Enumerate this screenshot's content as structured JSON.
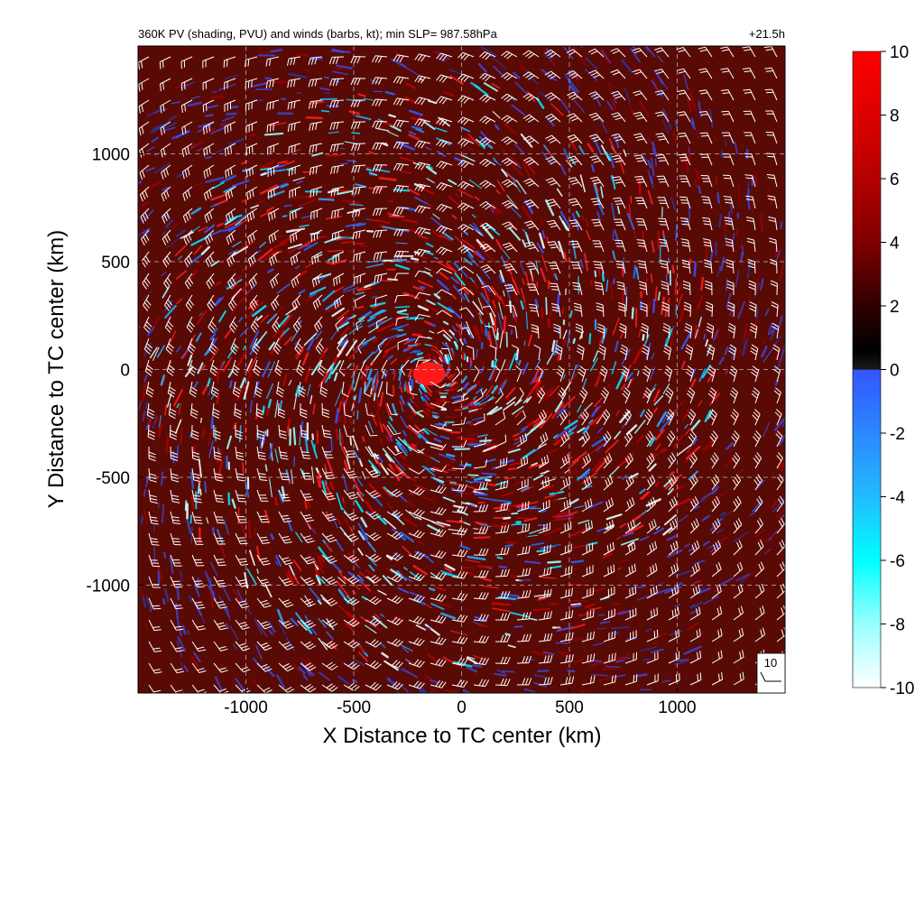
{
  "chart_data": {
    "type": "heatmap",
    "title": "360K PV (shading, PVU) and winds (barbs, kt); min SLP= 987.58hPa",
    "time_label": "+21.5h",
    "xlabel": "X Distance to TC center (km)",
    "ylabel": "Y Distance to TC center (km)",
    "xlim": [
      -1500,
      1500
    ],
    "ylim": [
      -1500,
      1500
    ],
    "x_ticks": [
      -1000,
      -500,
      0,
      500,
      1000
    ],
    "y_ticks": [
      -1000,
      -500,
      0,
      500,
      1000
    ],
    "x_tick_labels": [
      "-1000",
      "-500",
      "0",
      "500",
      "1000"
    ],
    "y_tick_labels": [
      "-1000",
      "-500",
      "0",
      "500",
      "1000"
    ],
    "grid": true,
    "colorbar": {
      "units": "PVU",
      "range": [
        -10,
        10
      ],
      "ticks": [
        10,
        8,
        6,
        4,
        2,
        0,
        -2,
        -4,
        -6,
        -8,
        -10
      ],
      "tick_labels": [
        "10",
        "8",
        "6",
        "4",
        "2",
        "0",
        "-2",
        "-4",
        "-6",
        "-8",
        "-10"
      ],
      "stops": [
        {
          "value": 10,
          "color": "#ff0000"
        },
        {
          "value": 7,
          "color": "#cc0000"
        },
        {
          "value": 4,
          "color": "#800000"
        },
        {
          "value": 2,
          "color": "#300000"
        },
        {
          "value": 0.6,
          "color": "#000000"
        },
        {
          "value": 0,
          "color": "#1a1a1a"
        },
        {
          "value": -0.01,
          "color": "#3355ff"
        },
        {
          "value": -4,
          "color": "#22bbff"
        },
        {
          "value": -6,
          "color": "#00ffff"
        },
        {
          "value": -8,
          "color": "#99ffff"
        },
        {
          "value": -10,
          "color": "#ffffff"
        }
      ]
    },
    "reference_barb": {
      "label": "10",
      "speed_kt": 10
    },
    "background_color": "#5a0a05"
  }
}
